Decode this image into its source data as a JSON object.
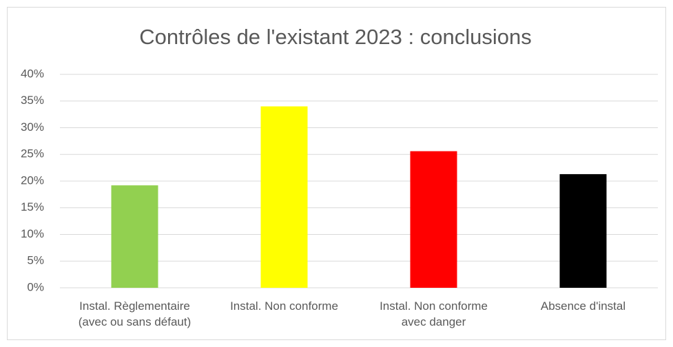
{
  "chart_data": {
    "type": "bar",
    "title": "Contrôles de l'existant 2023 : conclusions",
    "categories": [
      "Instal. Règlementaire\n(avec ou sans défaut)",
      "Instal. Non conforme",
      "Instal. Non conforme\navec danger",
      "Absence d'instal"
    ],
    "values": [
      19.2,
      34,
      25.6,
      21.3
    ],
    "colors": [
      "#92d050",
      "#ffff00",
      "#ff0000",
      "#000000"
    ],
    "ylim": [
      0,
      40
    ],
    "yticks": [
      {
        "value": 0,
        "label": "0%"
      },
      {
        "value": 5,
        "label": "5%"
      },
      {
        "value": 10,
        "label": "10%"
      },
      {
        "value": 15,
        "label": "15%"
      },
      {
        "value": 20,
        "label": "20%"
      },
      {
        "value": 25,
        "label": "25%"
      },
      {
        "value": 30,
        "label": "30%"
      },
      {
        "value": 35,
        "label": "35%"
      },
      {
        "value": 40,
        "label": "40%"
      }
    ],
    "grid": true
  }
}
